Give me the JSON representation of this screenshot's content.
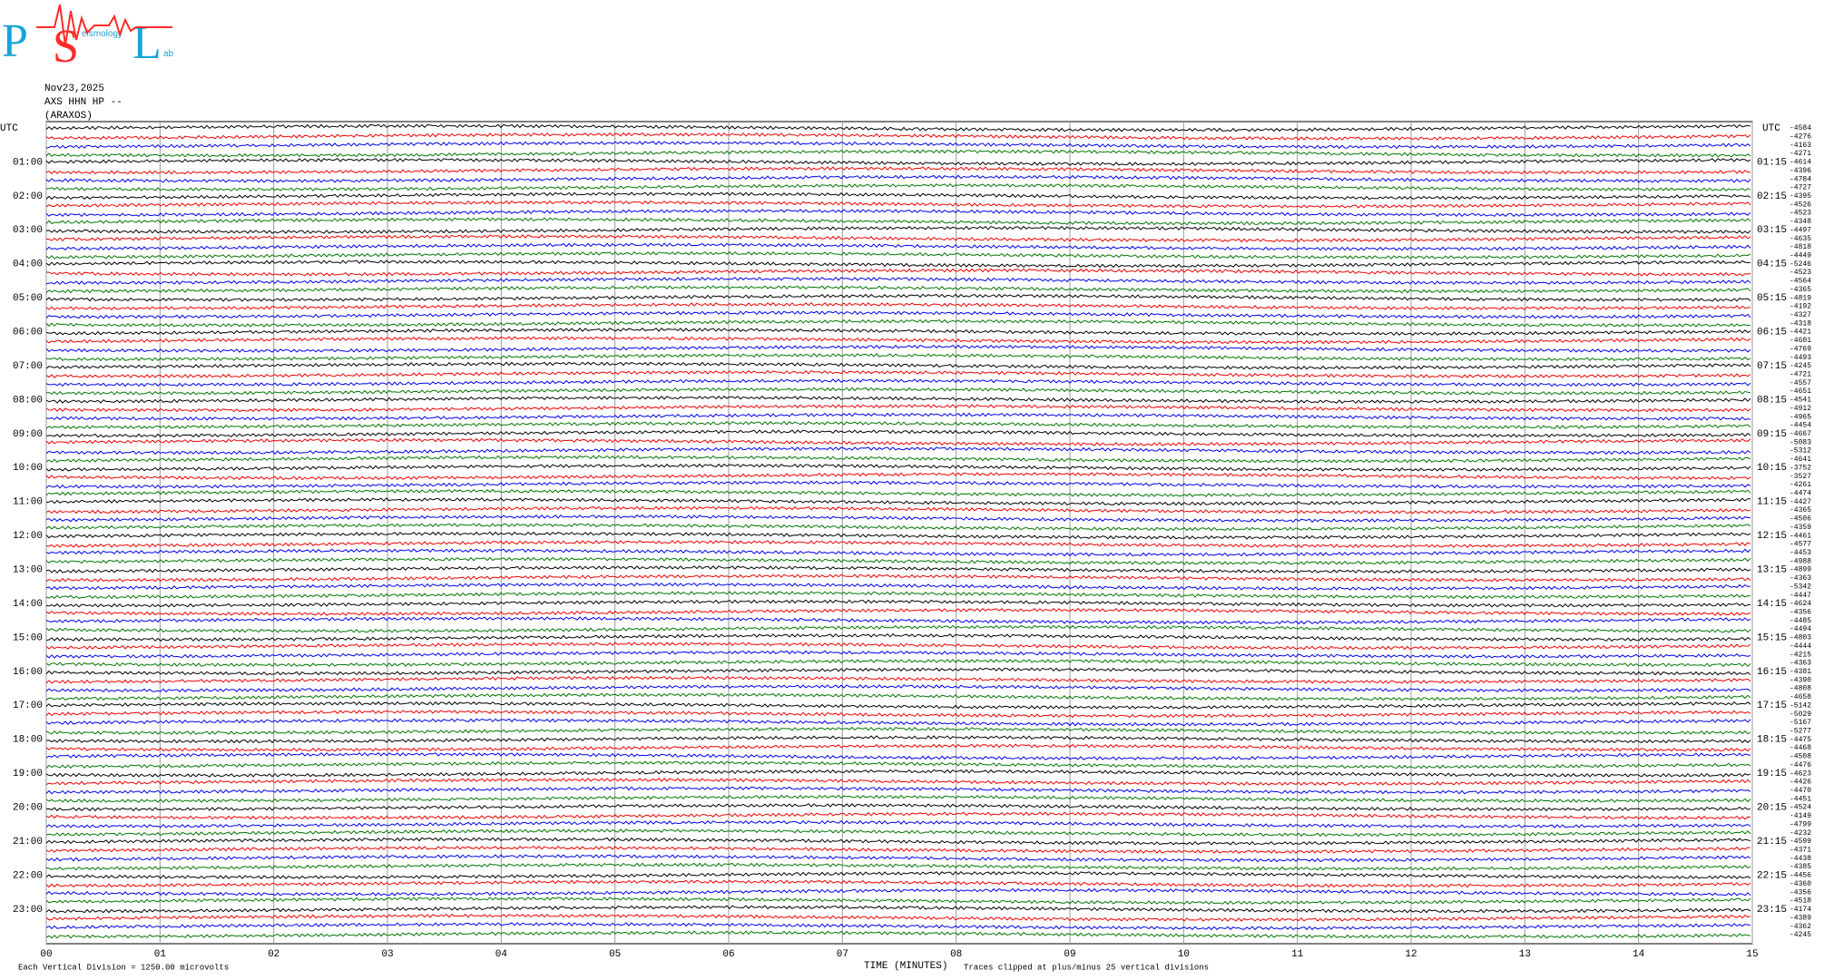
{
  "logo": {
    "letters": [
      "P",
      "S",
      "L"
    ],
    "small": [
      "eismology",
      "ab"
    ]
  },
  "header": {
    "date": "Nov23,2025",
    "channel": "AXS HHN HP --",
    "station": "(ARAXOS)"
  },
  "utc_left": "UTC",
  "utc_right": "UTC",
  "left_labels": [
    "01:00",
    "02:00",
    "03:00",
    "04:00",
    "05:00",
    "06:00",
    "07:00",
    "08:00",
    "09:00",
    "10:00",
    "11:00",
    "12:00",
    "13:00",
    "14:00",
    "15:00",
    "16:00",
    "17:00",
    "18:00",
    "19:00",
    "20:00",
    "21:00",
    "22:00",
    "23:00"
  ],
  "right_labels": [
    "01:15",
    "02:15",
    "03:15",
    "04:15",
    "05:15",
    "06:15",
    "07:15",
    "08:15",
    "09:15",
    "10:15",
    "11:15",
    "12:15",
    "13:15",
    "14:15",
    "15:15",
    "16:15",
    "17:15",
    "18:15",
    "19:15",
    "20:15",
    "21:15",
    "22:15",
    "23:15"
  ],
  "trace_offsets": [
    -4584,
    -4276,
    -4163,
    -4271,
    -4614,
    -4396,
    -4784,
    -4727,
    -4395,
    -4526,
    -4523,
    -4348,
    -4497,
    -4635,
    -4818,
    -4449,
    -5246,
    -4523,
    -4564,
    -4365,
    -4819,
    -4192,
    -4327,
    -4318,
    -4421,
    -4601,
    -4769,
    -4493,
    -4245,
    -4721,
    -4557,
    -4651,
    -4541,
    -4912,
    -4965,
    -4454,
    -4667,
    -5083,
    -5312,
    -4641,
    -3752,
    -3527,
    -4261,
    -4474,
    -4427,
    -4365,
    -4506,
    -4359,
    -4461,
    -4577,
    -4453,
    -4988,
    -4899,
    -4363,
    -5342,
    -4447,
    -4624,
    -4356,
    -4485,
    -4494,
    -4803,
    -4444,
    -4215,
    -4363,
    -4381,
    -4390,
    -4808,
    -4658,
    -5142,
    -5029,
    -5167,
    -5277,
    -4475,
    -4468,
    -4508,
    -4476,
    -4623,
    -4426,
    -4470,
    -4451,
    -4524,
    -4149,
    -4799,
    -4232,
    -4599,
    -4371,
    -4438,
    -4385,
    -4456,
    -4360,
    -4356,
    -4518,
    -4174,
    -4389,
    -4362,
    -4245
  ],
  "x_ticks": [
    "00",
    "01",
    "02",
    "03",
    "04",
    "05",
    "06",
    "07",
    "08",
    "09",
    "10",
    "11",
    "12",
    "13",
    "14",
    "15"
  ],
  "footer": {
    "scale": "Each Vertical Division = 1250.00 microvolts",
    "axis": "TIME (MINUTES)",
    "clip": "Traces clipped at plus/minus 25 vertical divisions"
  }
}
